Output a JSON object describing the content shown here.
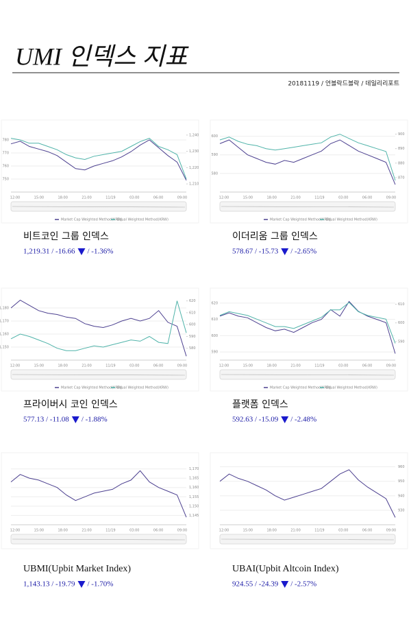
{
  "header": {
    "title": "UMI 인덱스 지표",
    "subtitle": "20181119 / 언블락드블락 / 데일리리포트"
  },
  "panels": [
    {
      "title": "비트코인 그룹 인덱스",
      "value": "1,219.31 / -16.66",
      "pct": "/ -1.36%",
      "chart": {
        "type": "line",
        "xticks": [
          "12:00",
          "15:00",
          "18:00",
          "21:00",
          "11/19",
          "03:00",
          "06:00",
          "09:00"
        ],
        "ylim": [
          740,
          790
        ],
        "yticks": [
          750,
          760,
          770,
          780
        ],
        "y2lim": [
          1205,
          1245
        ],
        "y2ticks": [
          {
            "value": 1210,
            "label": "1,210"
          },
          {
            "value": 1220,
            "label": "1,220"
          },
          {
            "value": 1230,
            "label": "1,230"
          },
          {
            "value": 1240,
            "label": "1,240"
          }
        ],
        "series": [
          {
            "name": "Market Cap Weighted Method(KRW)",
            "color": "#4b3f8f",
            "values": [
              777,
              779,
              775,
              773,
              771,
              768,
              763,
              758,
              757,
              760,
              762,
              764,
              767,
              771,
              776,
              780,
              774,
              768,
              763,
              749
            ]
          },
          {
            "name": "Equal Weighted Method(KRW)",
            "color": "#4fb3a9",
            "axis": "y2",
            "values": [
              1238,
              1237,
              1235,
              1235,
              1233,
              1231,
              1228,
              1226,
              1225,
              1227,
              1228,
              1229,
              1230,
              1233,
              1236,
              1238,
              1233,
              1231,
              1228,
              1213
            ]
          }
        ]
      }
    },
    {
      "title": "이더리움 그룹 인덱스",
      "value": "578.67 / -15.73",
      "pct": "/ -2.65%",
      "chart": {
        "type": "line",
        "xticks": [
          "12:00",
          "15:00",
          "18:00",
          "21:00",
          "11/19",
          "03:00",
          "06:00",
          "09:00"
        ],
        "ylim": [
          570,
          605
        ],
        "yticks": [
          580,
          590,
          600
        ],
        "y2lim": [
          860,
          905
        ],
        "y2ticks": [
          870,
          880,
          890,
          900
        ],
        "series": [
          {
            "name": "Market Cap Weighted Method(KRW)",
            "color": "#4b3f8f",
            "values": [
              596,
              598,
              594,
              590,
              588,
              586,
              585,
              587,
              586,
              588,
              590,
              592,
              596,
              598,
              595,
              592,
              590,
              588,
              586,
              574
            ]
          },
          {
            "name": "Equal Weighted Method(KRW)",
            "color": "#4fb3a9",
            "axis": "y2",
            "values": [
              896,
              898,
              895,
              893,
              892,
              890,
              889,
              890,
              891,
              892,
              893,
              894,
              898,
              900,
              897,
              894,
              892,
              890,
              888,
              868
            ]
          }
        ]
      }
    },
    {
      "title": "프라이버시 코인 인덱스",
      "value": "577.13 / -11.08",
      "pct": "/ -1.88%",
      "chart": {
        "type": "line",
        "xticks": [
          "12:00",
          "15:00",
          "18:00",
          "21:00",
          "11/19",
          "03:00",
          "06:00",
          "09:00"
        ],
        "ylim": [
          1140,
          1190
        ],
        "yticks": [
          {
            "value": 1150,
            "label": "1,150"
          },
          {
            "value": 1160,
            "label": "1,160"
          },
          {
            "value": 1170,
            "label": "1,170"
          },
          {
            "value": 1180,
            "label": "1,180"
          }
        ],
        "y2lim": [
          570,
          625
        ],
        "y2ticks": [
          580,
          590,
          600,
          610,
          620
        ],
        "series": [
          {
            "name": "Market Cap Weighted Method(KRW)",
            "color": "#4b3f8f",
            "values": [
              1180,
              1186,
              1182,
              1178,
              1176,
              1175,
              1173,
              1172,
              1168,
              1166,
              1165,
              1167,
              1170,
              1172,
              1170,
              1172,
              1178,
              1169,
              1166,
              1143
            ]
          },
          {
            "name": "Equal Weighted Method(KRW)",
            "color": "#4fb3a9",
            "axis": "y2",
            "values": [
              588,
              592,
              590,
              587,
              584,
              580,
              578,
              578,
              580,
              582,
              581,
              583,
              585,
              587,
              586,
              590,
              585,
              584,
              620,
              593
            ]
          }
        ]
      }
    },
    {
      "title": "플랫폼 인덱스",
      "value": "592.63 / -15.09",
      "pct": "/ -2.48%",
      "chart": {
        "type": "line",
        "xticks": [
          "12:00",
          "15:00",
          "18:00",
          "21:00",
          "11/19",
          "03:00",
          "06:00",
          "09:00"
        ],
        "ylim": [
          585,
          625
        ],
        "yticks": [
          590,
          600,
          610,
          620
        ],
        "y2lim": [
          580,
          615
        ],
        "y2ticks": [
          590,
          600,
          610
        ],
        "series": [
          {
            "name": "Market Cap Weighted Method(KRW)",
            "color": "#4b3f8f",
            "values": [
              612,
              614,
              612,
              611,
              608,
              605,
              603,
              604,
              602,
              605,
              608,
              610,
              616,
              612,
              621,
              615,
              612,
              610,
              608,
              589
            ]
          },
          {
            "name": "Equal Weighted Method(KRW)",
            "color": "#4fb3a9",
            "axis": "y2",
            "values": [
              604,
              606,
              605,
              604,
              602,
              600,
              598,
              598,
              597,
              599,
              601,
              603,
              607,
              607,
              611,
              606,
              604,
              603,
              602,
              589
            ]
          }
        ]
      }
    },
    {
      "title": "UBMI(Upbit Market Index)",
      "value": "1,143.13 / -19.79",
      "pct": "/ -1.70%",
      "chart": {
        "type": "line",
        "xticks": [
          "12:00",
          "15:00",
          "18:00",
          "21:00",
          "11/19",
          "03:00",
          "06:00",
          "09:00"
        ],
        "y2lim": [
          1140,
          1175
        ],
        "y2ticks": [
          {
            "value": 1145,
            "label": "1,145"
          },
          {
            "value": 1150,
            "label": "1,150"
          },
          {
            "value": 1155,
            "label": "1,155"
          },
          {
            "value": 1160,
            "label": "1,160"
          },
          {
            "value": 1165,
            "label": "1,165"
          },
          {
            "value": 1170,
            "label": "1,170"
          }
        ],
        "series": [
          {
            "name": "UBMI",
            "color": "#4b3f8f",
            "axis": "y2",
            "values": [
              1163,
              1167,
              1165,
              1164,
              1162,
              1160,
              1156,
              1153,
              1155,
              1157,
              1158,
              1159,
              1162,
              1164,
              1169,
              1163,
              1160,
              1158,
              1156,
              1144
            ]
          }
        ]
      }
    },
    {
      "title": "UBAI(Upbit Altcoin Index)",
      "value": "924.55 / -24.39",
      "pct": "/ -2.57%",
      "chart": {
        "type": "line",
        "xticks": [
          "12:00",
          "15:00",
          "18:00",
          "21:00",
          "11/19",
          "03:00",
          "06:00",
          "09:00"
        ],
        "y2lim": [
          920,
          965
        ],
        "y2ticks": [
          930,
          940,
          950,
          960
        ],
        "series": [
          {
            "name": "UBAI",
            "color": "#4b3f8f",
            "axis": "y2",
            "values": [
              950,
              955,
              952,
              950,
              947,
              944,
              940,
              937,
              939,
              941,
              943,
              945,
              950,
              955,
              958,
              951,
              946,
              942,
              938,
              925
            ]
          }
        ]
      }
    }
  ]
}
